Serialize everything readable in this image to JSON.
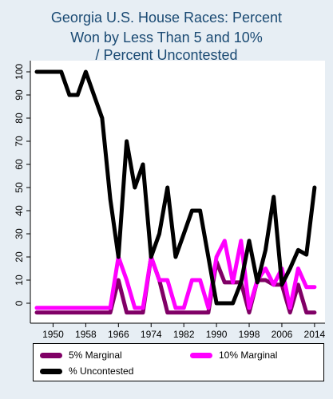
{
  "chart_data": {
    "type": "line",
    "title": "Georgia U.S. House Races: Percent Won by Less Than 5 and 10% / Percent Uncontested",
    "title_lines": [
      "Georgia U.S. House Races: Percent",
      "Won by Less Than 5 and 10%",
      "/ Percent Uncontested"
    ],
    "xlabel": "",
    "ylabel": "",
    "xlim": [
      1946,
      2015
    ],
    "ylim": [
      -4,
      104
    ],
    "x_ticks": [
      1950,
      1958,
      1966,
      1974,
      1982,
      1990,
      1998,
      2006,
      2014
    ],
    "y_ticks": [
      0,
      10,
      20,
      30,
      40,
      50,
      60,
      70,
      80,
      90,
      100
    ],
    "grid": false,
    "legend_position": "bottom",
    "x": [
      1946,
      1948,
      1950,
      1952,
      1954,
      1956,
      1958,
      1960,
      1962,
      1964,
      1966,
      1968,
      1970,
      1972,
      1974,
      1976,
      1978,
      1980,
      1982,
      1984,
      1986,
      1988,
      1990,
      1992,
      1994,
      1996,
      1998,
      2000,
      2002,
      2004,
      2006,
      2008,
      2010,
      2012,
      2014
    ],
    "series": [
      {
        "name": "5% Marginal",
        "color": "#800066",
        "values": [
          -4,
          -4,
          -4,
          -4,
          -4,
          -4,
          -4,
          -4,
          -4,
          -4,
          10,
          -4,
          -4,
          -4,
          20,
          10,
          -4,
          -4,
          -4,
          -4,
          -4,
          -4,
          18,
          9,
          9,
          9,
          -4,
          10,
          10,
          8,
          8,
          -4,
          8,
          -4,
          -4
        ]
      },
      {
        "name": "10% Marginal",
        "color": "#ff00ff",
        "values": [
          -2,
          -2,
          -2,
          -2,
          -2,
          -2,
          -2,
          -2,
          -2,
          -2,
          20,
          10,
          -2,
          -2,
          20,
          10,
          10,
          -2,
          -2,
          10,
          10,
          -2,
          20,
          27,
          9,
          27,
          -2,
          10,
          15,
          8,
          15,
          -2,
          15,
          7,
          7
        ]
      },
      {
        "name": "% Uncontested",
        "color": "#000000",
        "values": [
          100,
          100,
          100,
          100,
          90,
          90,
          100,
          90,
          80,
          45,
          20,
          70,
          50,
          60,
          20,
          30,
          50,
          20,
          30,
          40,
          40,
          20,
          0,
          0,
          0,
          9,
          27,
          9,
          23,
          46,
          8,
          15,
          23,
          21,
          50
        ]
      }
    ]
  }
}
